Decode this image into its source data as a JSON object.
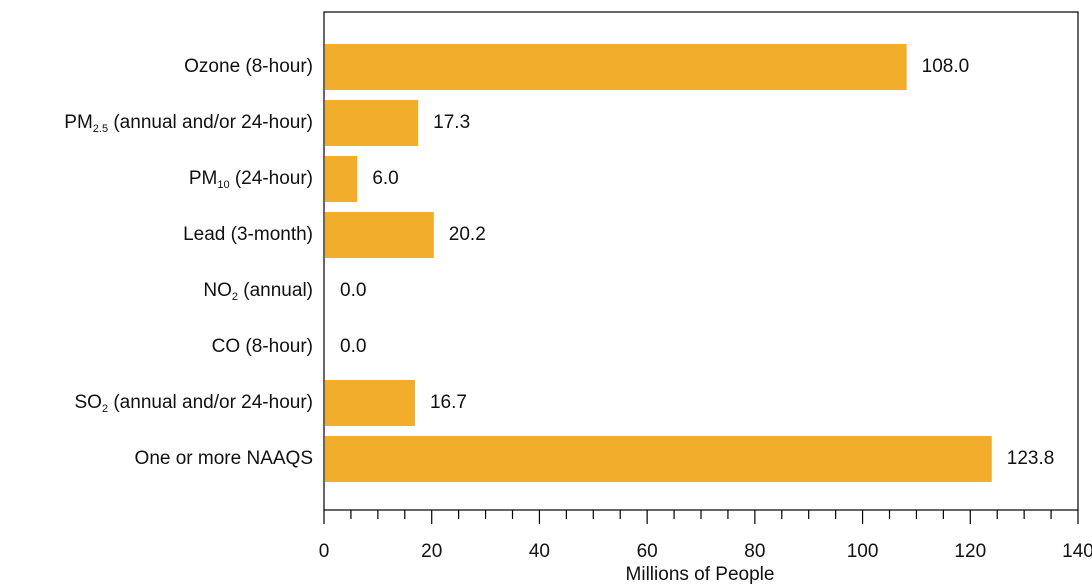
{
  "chart_data": {
    "type": "bar",
    "orientation": "horizontal",
    "categories": [
      {
        "label": "Ozone (8-hour)",
        "base": "Ozone (8-hour)",
        "sub": "",
        "rest": ""
      },
      {
        "label": "PM2.5 (annual and/or 24-hour)",
        "base": "PM",
        "sub": "2.5",
        "rest": " (annual and/or 24-hour)"
      },
      {
        "label": "PM10 (24-hour)",
        "base": "PM",
        "sub": "10",
        "rest": " (24-hour)"
      },
      {
        "label": "Lead (3-month)",
        "base": "Lead (3-month)",
        "sub": "",
        "rest": ""
      },
      {
        "label": "NO2 (annual)",
        "base": "NO",
        "sub": "2",
        "rest": " (annual)"
      },
      {
        "label": "CO (8-hour)",
        "base": "CO (8-hour)",
        "sub": "",
        "rest": ""
      },
      {
        "label": "SO2 (annual and/or 24-hour)",
        "base": "SO",
        "sub": "2",
        "rest": " (annual and/or 24-hour)"
      },
      {
        "label": "One or more NAAQS",
        "base": "One or more NAAQS",
        "sub": "",
        "rest": ""
      }
    ],
    "values": [
      108.0,
      17.3,
      6.0,
      20.2,
      0.0,
      0.0,
      16.7,
      123.8
    ],
    "value_labels": [
      "108.0",
      "17.3",
      "6.0",
      "20.2",
      "0.0",
      "0.0",
      "16.7",
      "123.8"
    ],
    "xlabel": "Millions of People",
    "ylabel": "",
    "title": "",
    "xlim": [
      0,
      140
    ],
    "x_ticks": [
      0,
      20,
      40,
      60,
      80,
      100,
      120,
      140
    ],
    "x_tick_labels": [
      "0",
      "20",
      "40",
      "60",
      "80",
      "100",
      "120",
      "140"
    ],
    "grid": false,
    "colors": {
      "bar": "#f2ad2b",
      "axis": "#000000"
    }
  }
}
